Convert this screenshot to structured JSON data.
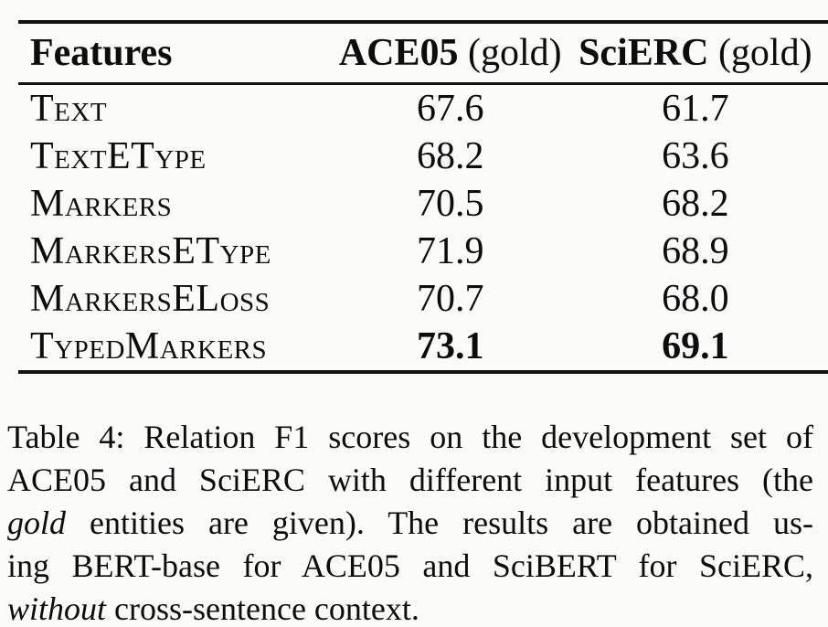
{
  "page": {
    "background_color": "#fbfbfa",
    "text_color": "#0d0d0d"
  },
  "chart_data": {
    "type": "table",
    "title": "Table 4",
    "columns": [
      "Features",
      "ACE05 (gold)",
      "SciERC (gold)"
    ],
    "rows": [
      [
        "Text",
        67.6,
        61.7
      ],
      [
        "TextEType",
        68.2,
        63.6
      ],
      [
        "Markers",
        70.5,
        68.2
      ],
      [
        "MarkersEType",
        71.9,
        68.9
      ],
      [
        "MarkersELoss",
        70.7,
        68.0
      ],
      [
        "TypedMarkers",
        73.1,
        69.1
      ]
    ],
    "bold_values_row": "TypedMarkers"
  },
  "table": {
    "columns": [
      {
        "label": "Features"
      },
      {
        "name": "ACE05",
        "suffix": " (gold)"
      },
      {
        "name": "SciERC",
        "suffix": " (gold)"
      }
    ],
    "rows": [
      {
        "feature": "Text",
        "ace05": "67.6",
        "scierc": "61.7"
      },
      {
        "feature": "TextEType",
        "ace05": "68.2",
        "scierc": "63.6"
      },
      {
        "feature": "Markers",
        "ace05": "70.5",
        "scierc": "68.2"
      },
      {
        "feature": "MarkersEType",
        "ace05": "71.9",
        "scierc": "68.9"
      },
      {
        "feature": "MarkersELoss",
        "ace05": "70.7",
        "scierc": "68.0"
      },
      {
        "feature": "TypedMarkers",
        "ace05": "73.1",
        "scierc": "69.1"
      }
    ]
  },
  "caption": {
    "lines": [
      {
        "plain": "Table 4: Relation F1 scores on the development set of"
      },
      {
        "plain": "ACE05 and SciERC with different input features (the"
      },
      {
        "italic": "gold",
        "plain": " entities are given).  The results are obtained us-"
      },
      {
        "plain": "ing BERT-base for ACE05 and SciBERT for SciERC,"
      },
      {
        "italic": "without",
        "plain": " cross-sentence context."
      }
    ]
  }
}
